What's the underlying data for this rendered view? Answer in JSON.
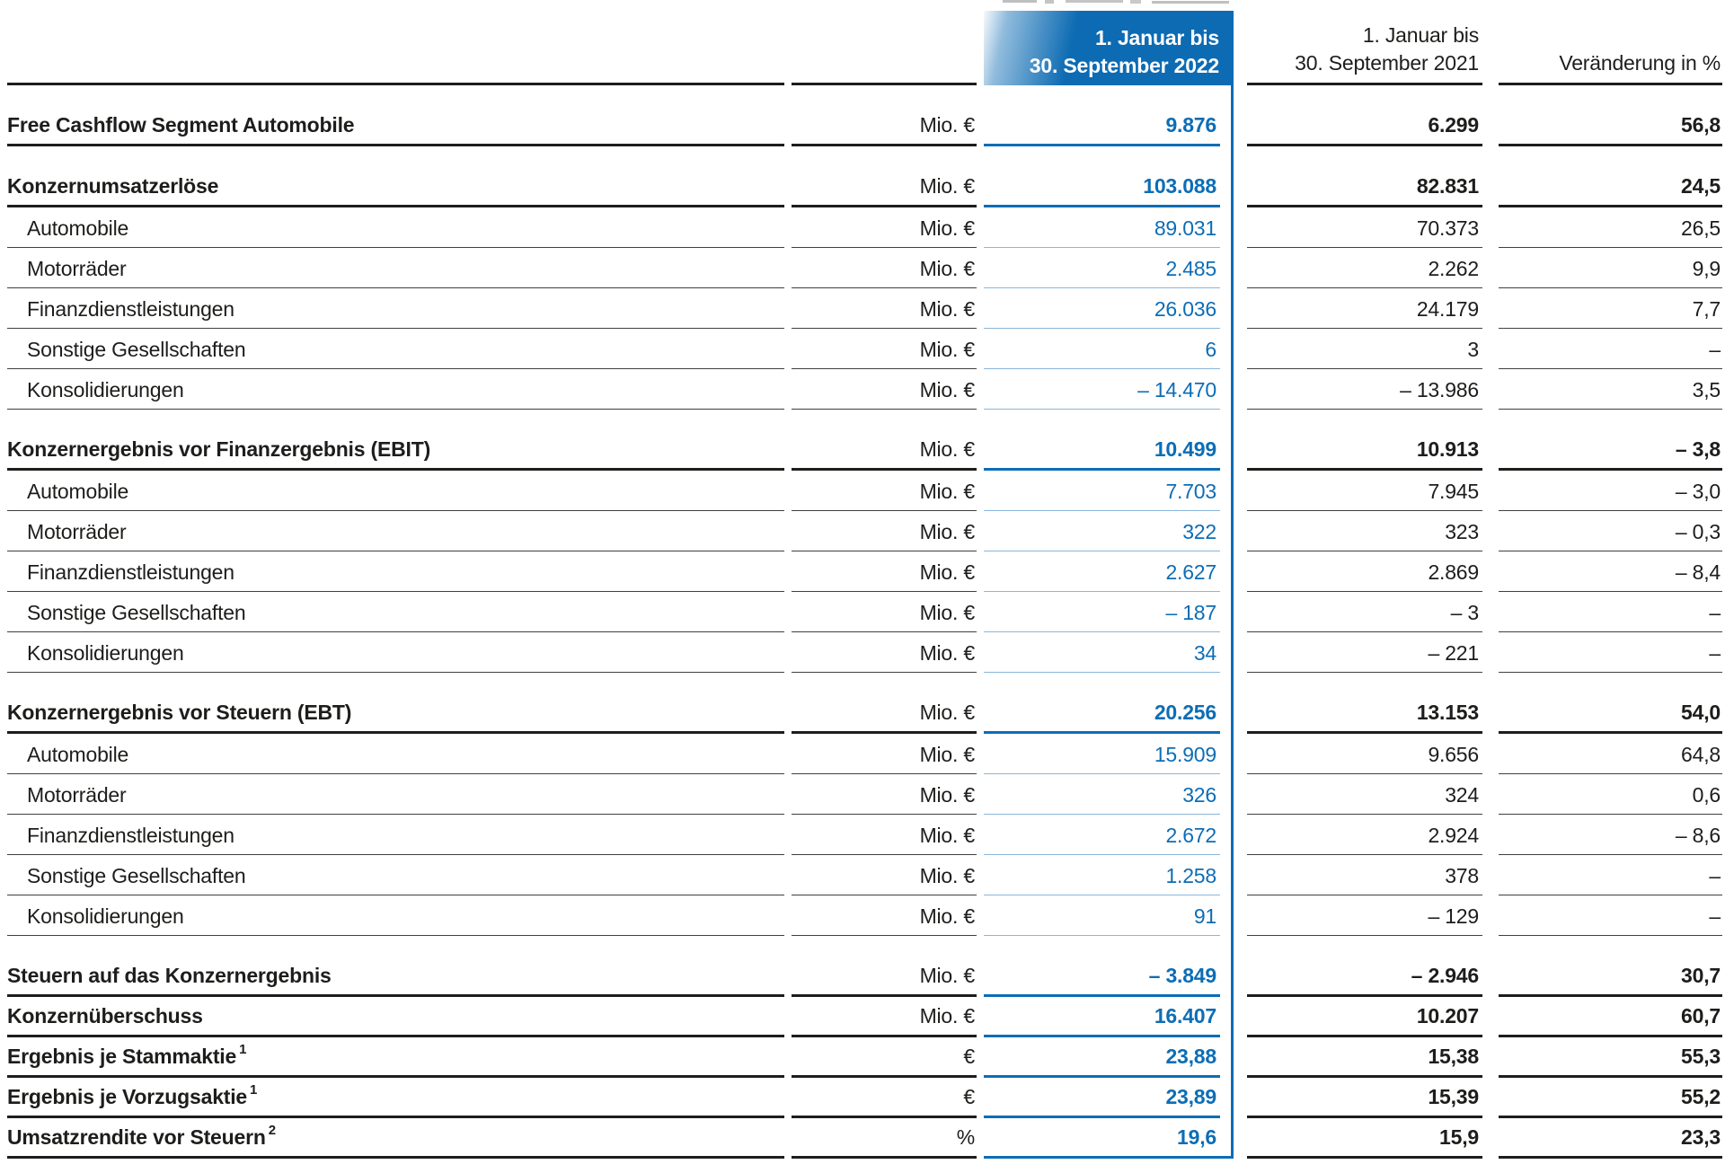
{
  "colors": {
    "accent_blue": "#0d6db5",
    "light_blue_rule": "#8ab6da",
    "text_black": "#1d1d1b",
    "rule_black": "#1d1d1b",
    "rule_gray": "#40403e"
  },
  "table": {
    "header": {
      "period_current": {
        "line1": "1. Januar bis",
        "line2": "30. September 2022"
      },
      "period_prior": {
        "line1": "1. Januar bis",
        "line2": "30. September 2021"
      },
      "change_label": "Veränderung in %"
    },
    "rows": [
      {
        "label": "Free Cashflow Segment Automobile",
        "sup": "",
        "unit": "Mio. €",
        "current": "9.876",
        "prior": "6.299",
        "change": "56,8",
        "bold": true,
        "indent": false,
        "section": true
      },
      {
        "label": "Konzernumsatzerlöse",
        "sup": "",
        "unit": "Mio. €",
        "current": "103.088",
        "prior": "82.831",
        "change": "24,5",
        "bold": true,
        "indent": false,
        "section": true
      },
      {
        "label": "Automobile",
        "sup": "",
        "unit": "Mio. €",
        "current": "89.031",
        "prior": "70.373",
        "change": "26,5",
        "bold": false,
        "indent": true,
        "section": false
      },
      {
        "label": "Motorräder",
        "sup": "",
        "unit": "Mio. €",
        "current": "2.485",
        "prior": "2.262",
        "change": "9,9",
        "bold": false,
        "indent": true,
        "section": false
      },
      {
        "label": "Finanzdienstleistungen",
        "sup": "",
        "unit": "Mio. €",
        "current": "26.036",
        "prior": "24.179",
        "change": "7,7",
        "bold": false,
        "indent": true,
        "section": false
      },
      {
        "label": "Sonstige Gesellschaften",
        "sup": "",
        "unit": "Mio. €",
        "current": "6",
        "prior": "3",
        "change": "–",
        "bold": false,
        "indent": true,
        "section": false
      },
      {
        "label": "Konsolidierungen",
        "sup": "",
        "unit": "Mio. €",
        "current": "– 14.470",
        "prior": "– 13.986",
        "change": "3,5",
        "bold": false,
        "indent": true,
        "section": false
      },
      {
        "label": "Konzernergebnis vor Finanzergebnis (EBIT)",
        "sup": "",
        "unit": "Mio. €",
        "current": "10.499",
        "prior": "10.913",
        "change": "– 3,8",
        "bold": true,
        "indent": false,
        "section": true
      },
      {
        "label": "Automobile",
        "sup": "",
        "unit": "Mio. €",
        "current": "7.703",
        "prior": "7.945",
        "change": "– 3,0",
        "bold": false,
        "indent": true,
        "section": false
      },
      {
        "label": "Motorräder",
        "sup": "",
        "unit": "Mio. €",
        "current": "322",
        "prior": "323",
        "change": "– 0,3",
        "bold": false,
        "indent": true,
        "section": false
      },
      {
        "label": "Finanzdienstleistungen",
        "sup": "",
        "unit": "Mio. €",
        "current": "2.627",
        "prior": "2.869",
        "change": "– 8,4",
        "bold": false,
        "indent": true,
        "section": false
      },
      {
        "label": "Sonstige Gesellschaften",
        "sup": "",
        "unit": "Mio. €",
        "current": "– 187",
        "prior": "– 3",
        "change": "–",
        "bold": false,
        "indent": true,
        "section": false
      },
      {
        "label": "Konsolidierungen",
        "sup": "",
        "unit": "Mio. €",
        "current": "34",
        "prior": "– 221",
        "change": "–",
        "bold": false,
        "indent": true,
        "section": false
      },
      {
        "label": "Konzernergebnis vor Steuern (EBT)",
        "sup": "",
        "unit": "Mio. €",
        "current": "20.256",
        "prior": "13.153",
        "change": "54,0",
        "bold": true,
        "indent": false,
        "section": true
      },
      {
        "label": "Automobile",
        "sup": "",
        "unit": "Mio. €",
        "current": "15.909",
        "prior": "9.656",
        "change": "64,8",
        "bold": false,
        "indent": true,
        "section": false
      },
      {
        "label": "Motorräder",
        "sup": "",
        "unit": "Mio. €",
        "current": "326",
        "prior": "324",
        "change": "0,6",
        "bold": false,
        "indent": true,
        "section": false
      },
      {
        "label": "Finanzdienstleistungen",
        "sup": "",
        "unit": "Mio. €",
        "current": "2.672",
        "prior": "2.924",
        "change": "– 8,6",
        "bold": false,
        "indent": true,
        "section": false
      },
      {
        "label": "Sonstige Gesellschaften",
        "sup": "",
        "unit": "Mio. €",
        "current": "1.258",
        "prior": "378",
        "change": "–",
        "bold": false,
        "indent": true,
        "section": false
      },
      {
        "label": "Konsolidierungen",
        "sup": "",
        "unit": "Mio. €",
        "current": "91",
        "prior": "– 129",
        "change": "–",
        "bold": false,
        "indent": true,
        "section": false
      },
      {
        "label": "Steuern auf das Konzernergebnis",
        "sup": "",
        "unit": "Mio. €",
        "current": "– 3.849",
        "prior": "– 2.946",
        "change": "30,7",
        "bold": true,
        "indent": false,
        "section": true
      },
      {
        "label": "Konzernüberschuss",
        "sup": "",
        "unit": "Mio. €",
        "current": "16.407",
        "prior": "10.207",
        "change": "60,7",
        "bold": true,
        "indent": false,
        "section": false
      },
      {
        "label": "Ergebnis je Stammaktie",
        "sup": "1",
        "unit": "€",
        "current": "23,88",
        "prior": "15,38",
        "change": "55,3",
        "bold": true,
        "indent": false,
        "section": false
      },
      {
        "label": "Ergebnis je Vorzugsaktie",
        "sup": "1",
        "unit": "€",
        "current": "23,89",
        "prior": "15,39",
        "change": "55,2",
        "bold": true,
        "indent": false,
        "section": false
      },
      {
        "label": "Umsatzrendite vor Steuern",
        "sup": "2",
        "unit": "%",
        "current": "19,6",
        "prior": "15,9",
        "change": "23,3",
        "bold": true,
        "indent": false,
        "section": false
      }
    ]
  }
}
